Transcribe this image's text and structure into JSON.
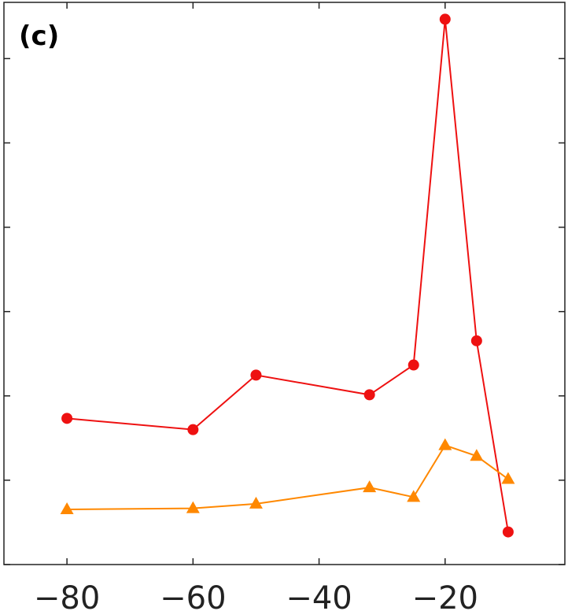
{
  "chart_data": {
    "type": "line",
    "panel_label": "(c)",
    "title": "",
    "xlabel": "",
    "ylabel": "",
    "xlim": [
      -90,
      -1
    ],
    "ylim": [
      0,
      100
    ],
    "x_ticks": [
      -80,
      -60,
      -40,
      -20
    ],
    "x_tick_labels": [
      "−80",
      "−60",
      "−40",
      "−20"
    ],
    "y_ticks": [
      0,
      15,
      30,
      45,
      60,
      75,
      90
    ],
    "y_tick_labels_shown": false,
    "grid": false,
    "legend": "none",
    "series": [
      {
        "color": "#ee1111",
        "marker": "circle",
        "x": [
          -80,
          -60,
          -50,
          -32,
          -25,
          -20,
          -15,
          -10
        ],
        "y": [
          26,
          24,
          33.7,
          30.2,
          35.5,
          97,
          39.8,
          5.8
        ]
      },
      {
        "color": "#ff8800",
        "marker": "triangle",
        "x": [
          -80,
          -60,
          -50,
          -32,
          -25,
          -20,
          -15,
          -10
        ],
        "y": [
          9.8,
          10,
          10.8,
          13.7,
          12,
          21.2,
          19.3,
          15.2
        ]
      }
    ]
  }
}
